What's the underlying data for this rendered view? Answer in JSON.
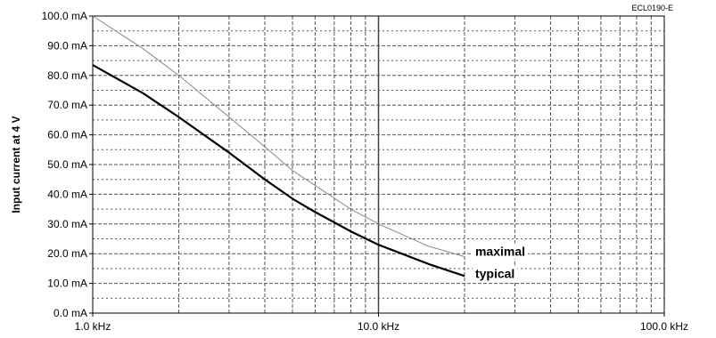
{
  "figure_code": "ECL0190-E",
  "chart_data": {
    "type": "line",
    "title": "",
    "xlabel": "",
    "ylabel": "Input current at 4 V",
    "x_scale": "log",
    "xlim": [
      1.0,
      100.0
    ],
    "ylim": [
      0,
      100
    ],
    "x_ticks": [
      1.0,
      10.0,
      100.0
    ],
    "x_tick_labels": [
      "1.0 kHz",
      "10.0 kHz",
      "100.0 kHz"
    ],
    "y_ticks": [
      0,
      10,
      20,
      30,
      40,
      50,
      60,
      70,
      80,
      90,
      100
    ],
    "y_tick_labels": [
      "0.0 mA",
      "10.0 mA",
      "20.0 mA",
      "30.0 mA",
      "40.0 mA",
      "50.0 mA",
      "60.0 mA",
      "70.0 mA",
      "80.0 mA",
      "90.0 mA",
      "100.0 mA"
    ],
    "grid": true,
    "x_unit": "kHz",
    "y_unit": "mA",
    "series": [
      {
        "name": "maximal",
        "color": "#888888",
        "x": [
          1.0,
          1.5,
          2.0,
          3.0,
          4.0,
          5.0,
          6.0,
          8.0,
          10.0,
          15.0,
          20.0
        ],
        "y": [
          100.0,
          89.0,
          80.0,
          66.0,
          56.0,
          48.0,
          43.0,
          35.0,
          30.0,
          22.5,
          19.0
        ]
      },
      {
        "name": "typical",
        "color": "#000000",
        "x": [
          1.0,
          1.5,
          2.0,
          3.0,
          4.0,
          5.0,
          6.0,
          8.0,
          10.0,
          15.0,
          20.0
        ],
        "y": [
          83.5,
          74.0,
          66.0,
          54.0,
          45.0,
          38.5,
          34.0,
          27.5,
          23.0,
          16.5,
          12.5
        ]
      }
    ]
  }
}
